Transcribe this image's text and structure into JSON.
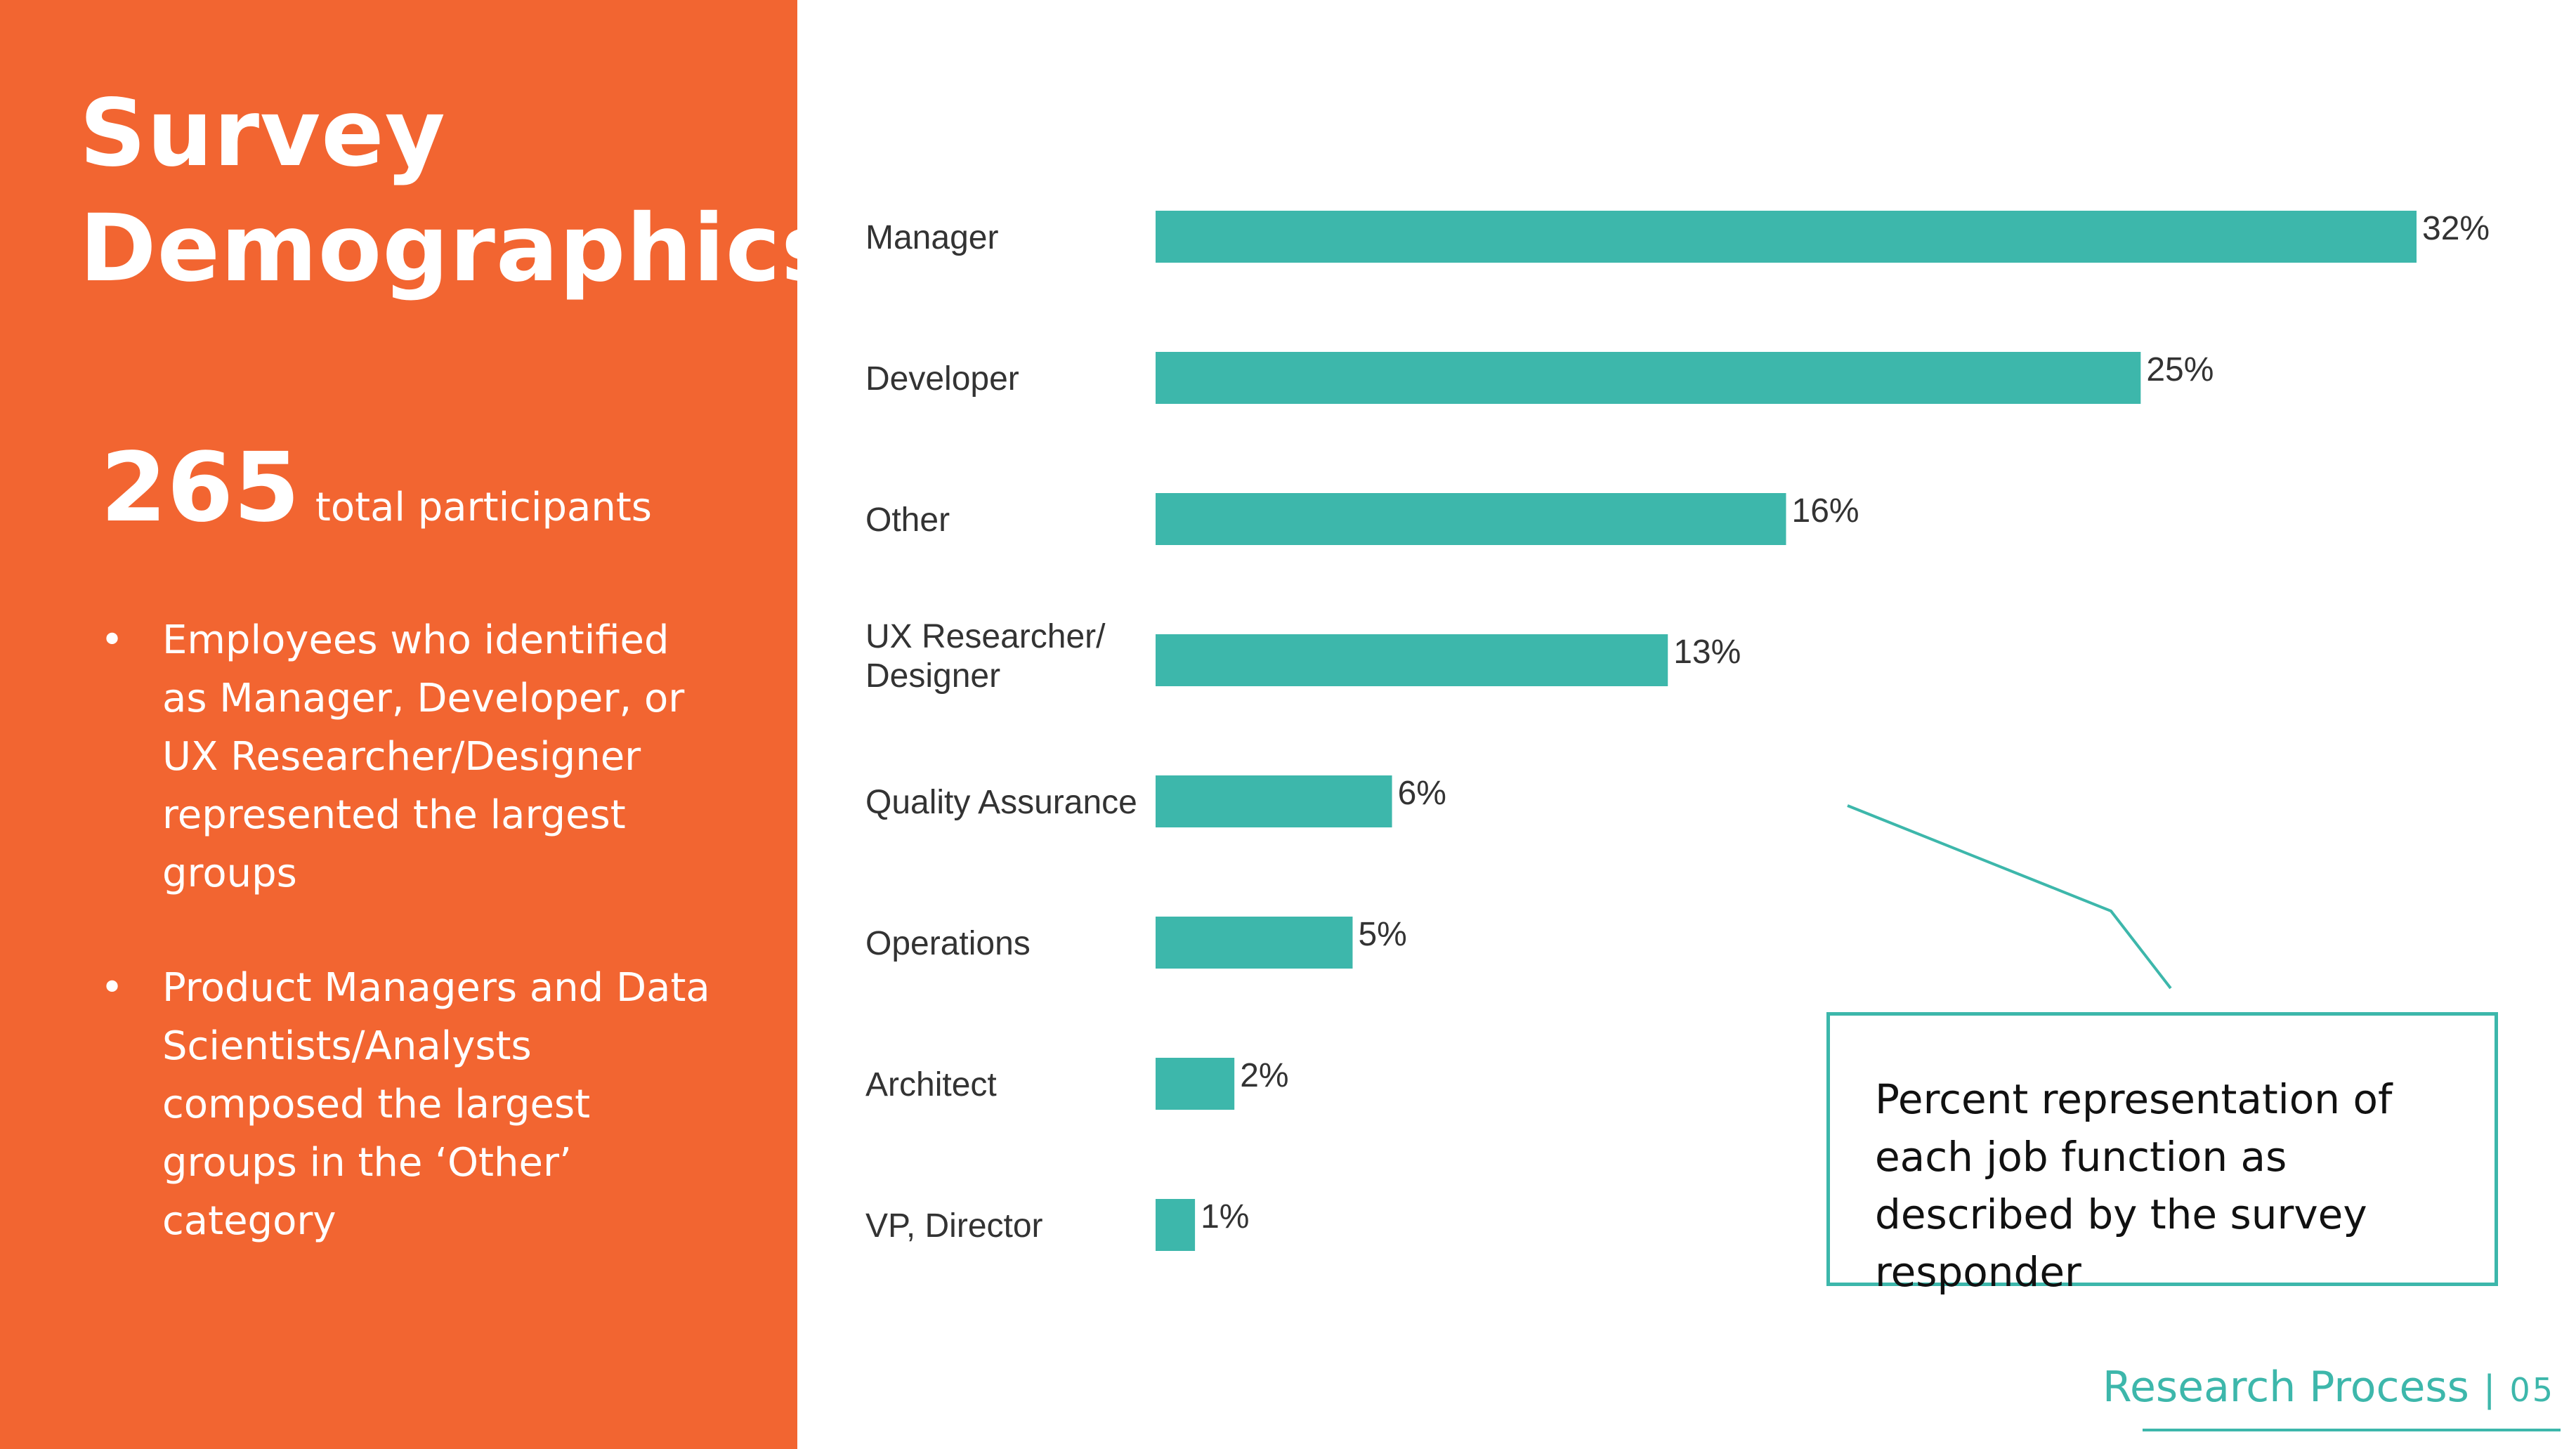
{
  "slide": {
    "title_line1": "Survey",
    "title_line2": "Demographics",
    "participants_count": "265",
    "participants_label": "total participants",
    "bullets": [
      "Employees who identified as Manager, Developer, or UX Researcher/Designer represented the largest groups",
      "Product Managers and Data Scientists/Analysts composed the largest groups in the ‘Other’ category"
    ],
    "callout": "Percent representation of each job function as described by the survey responder",
    "footer_section": "Research Process",
    "footer_sep": "|",
    "footer_page": "05"
  },
  "colors": {
    "panel": "#f26531",
    "bar": "#3db7ab",
    "accent": "#3db7ab"
  },
  "chart_data": {
    "type": "bar",
    "orientation": "horizontal",
    "categories": [
      "Manager",
      "Developer",
      "Other",
      "UX Researcher/ Designer",
      "Quality Assurance",
      "Operations",
      "Architect",
      "VP, Director"
    ],
    "values": [
      32,
      25,
      16,
      13,
      6,
      5,
      2,
      1
    ],
    "value_labels": [
      "32%",
      "25%",
      "16%",
      "13%",
      "6%",
      "5%",
      "2%",
      "1%"
    ],
    "unit": "%",
    "grid": false,
    "legend": "none"
  }
}
